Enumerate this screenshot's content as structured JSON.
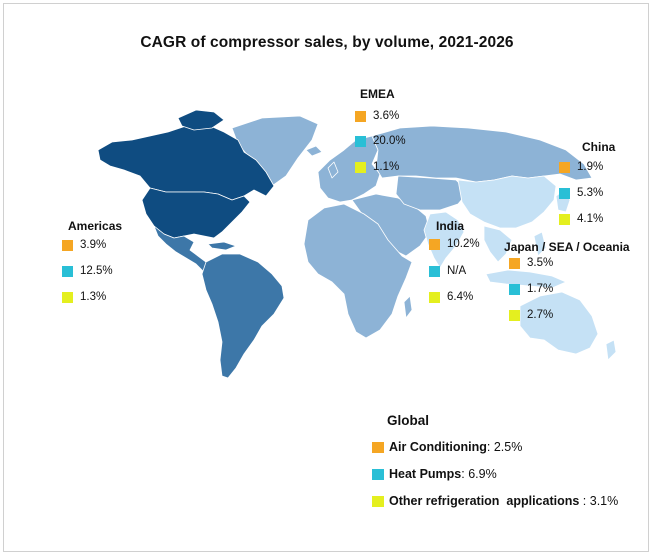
{
  "title": "CAGR of compressor sales, by volume, 2021-2026",
  "colors": {
    "air_conditioning": "#F5A623",
    "heat_pumps": "#29BFD6",
    "other_refrigeration": "#E4EF1F",
    "americas_land": "#3D77A8",
    "north_america_land": "#0F4C81",
    "emea_land": "#8DB3D6",
    "asia_land": "#C5E1F5",
    "oceania_land": "#C5E1F5",
    "border": "#ffffff"
  },
  "regions": {
    "americas": {
      "name": "Americas",
      "air_conditioning": "3.9%",
      "heat_pumps": "12.5%",
      "other_refrigeration": "1.3%"
    },
    "emea": {
      "name": "EMEA",
      "air_conditioning": "3.6%",
      "heat_pumps": "20.0%",
      "other_refrigeration": "1.1%"
    },
    "china": {
      "name": "China",
      "air_conditioning": "1.9%",
      "heat_pumps": "5.3%",
      "other_refrigeration": "4.1%"
    },
    "india": {
      "name": "India",
      "air_conditioning": "10.2%",
      "heat_pumps": "N/A",
      "other_refrigeration": "6.4%"
    },
    "japan_sea_oceania": {
      "name": "Japan / SEA / Oceania",
      "air_conditioning": "3.5%",
      "heat_pumps": "1.7%",
      "other_refrigeration": "2.7%"
    }
  },
  "global": {
    "title": "Global",
    "air_conditioning": {
      "label": "Air Conditioning",
      "value": ": 2.5%"
    },
    "heat_pumps": {
      "label": "Heat Pumps",
      "value": ": 6.9%"
    },
    "other_refrigeration": {
      "label": "Other refrigeration  applications",
      "value": " : 3.1%"
    }
  }
}
